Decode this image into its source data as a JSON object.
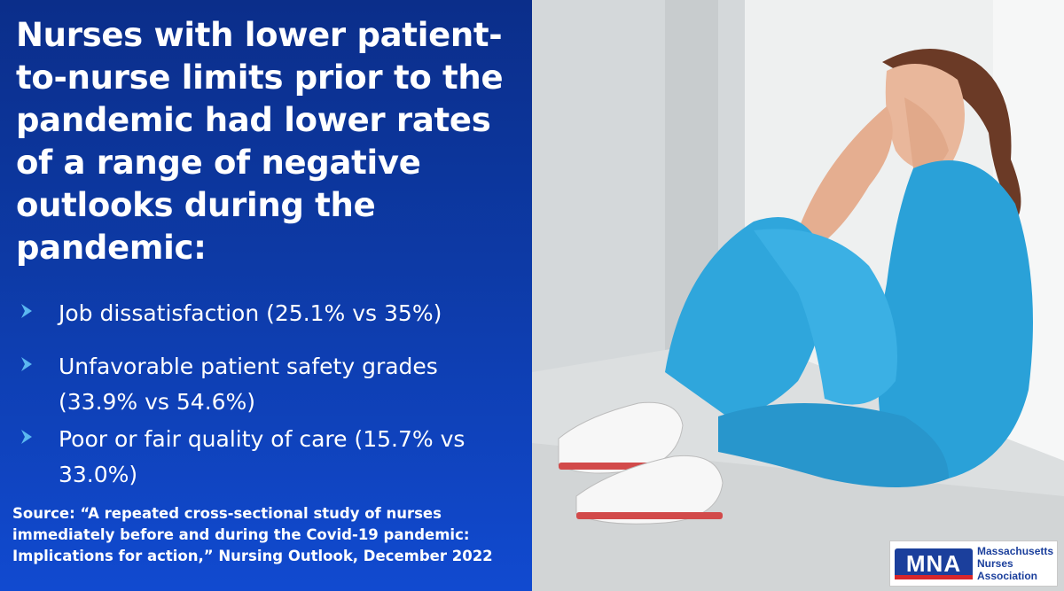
{
  "headline": "Nurses with lower patient-to-nurse limits prior to the pandemic had lower rates of a range of negative outlooks during the pandemic:",
  "headline_lines": [
    "Nurses with lower patient-",
    "to-nurse limits prior to the",
    "pandemic had lower rates",
    "of a range of negative",
    "outlooks during the",
    "pandemic:"
  ],
  "bullets": [
    {
      "lines": [
        "Job dissatisfaction (25.1% vs 35%)"
      ]
    },
    {
      "lines": [
        "Unfavorable patient safety grades",
        "(33.9% vs 54.6%)"
      ]
    },
    {
      "lines": [
        "Poor or fair quality of care (15.7% vs",
        "33.0%)"
      ]
    }
  ],
  "source_lines": [
    "Source: “A repeated cross-sectional study of nurses",
    "immediately before and during the Covid-19 pandemic:",
    "Implications for action,” Nursing Outlook, December 2022"
  ],
  "logo": {
    "mark": "MNA",
    "lines": [
      "Massachusetts",
      "Nurses",
      "Association"
    ]
  },
  "colors": {
    "panel_blue": "#0d3aa6",
    "chevron": "#5bb8f0",
    "scrubs": "#2fa6dc",
    "logo_blue": "#1b3f9c",
    "logo_red": "#d8262b"
  }
}
